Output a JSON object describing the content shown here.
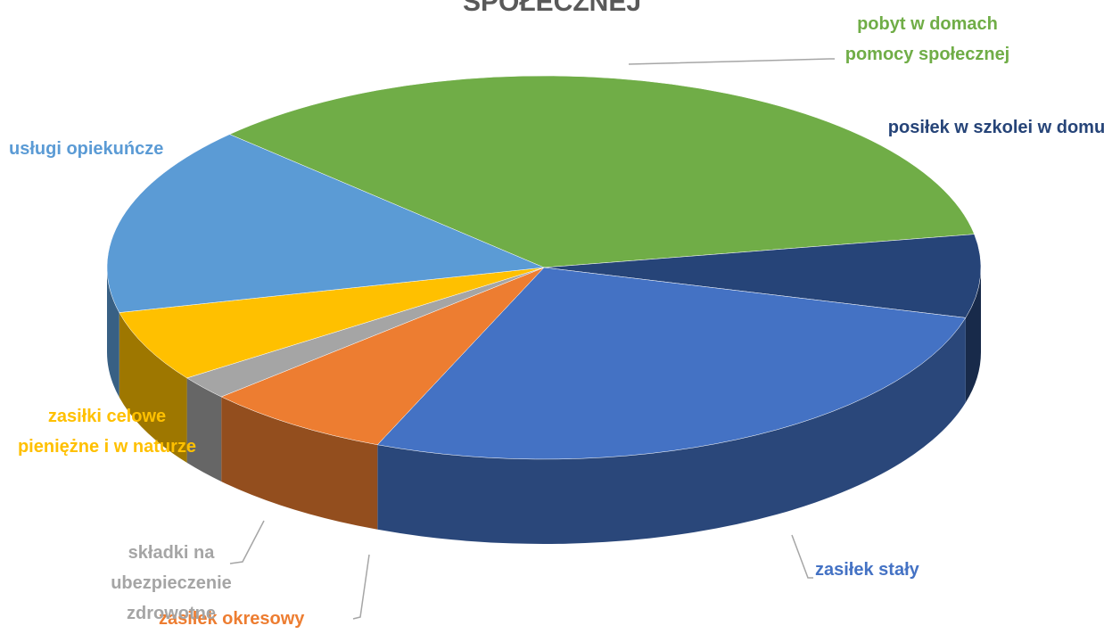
{
  "chart_data": {
    "type": "pie",
    "title": "SPOŁECZNEJ",
    "categories": [
      "pobyt w domach pomocy społecznej",
      "posiłek w szkolei w domu",
      "zasiłek stały",
      "zasiłek okresowy",
      "składki na ubezpieczenie zdrowotne",
      "zasiłki celowe pieniężne i w naturze",
      "usługi opiekuńcze"
    ],
    "values": [
      35,
      7,
      27,
      7,
      2,
      6,
      16
    ],
    "colors": [
      "#70ad47",
      "#264478",
      "#4472c4",
      "#ed7d31",
      "#a5a5a5",
      "#ffc000",
      "#5b9bd5"
    ]
  }
}
